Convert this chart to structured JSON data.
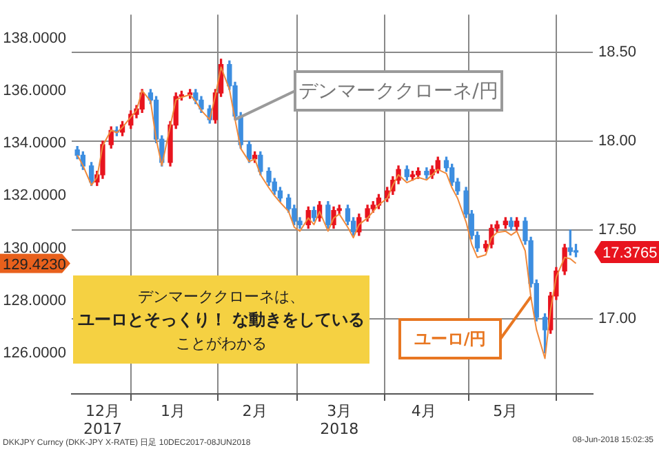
{
  "chart_data": {
    "type": "candlestick",
    "x": [
      "2017-12-13",
      "2017-12-15",
      "2017-12-18",
      "2017-12-20",
      "2017-12-22",
      "2017-12-25",
      "2017-12-27",
      "2017-12-29",
      "2018-01-01",
      "2018-01-03",
      "2018-01-05",
      "2018-01-08",
      "2018-01-10",
      "2018-01-12",
      "2018-01-15",
      "2018-01-17",
      "2018-01-19",
      "2018-01-22",
      "2018-01-24",
      "2018-01-26",
      "2018-01-29",
      "2018-01-31",
      "2018-02-02",
      "2018-02-05",
      "2018-02-07",
      "2018-02-09",
      "2018-02-12",
      "2018-02-14",
      "2018-02-16",
      "2018-02-19",
      "2018-02-21",
      "2018-02-23",
      "2018-02-26",
      "2018-02-28",
      "2018-03-02",
      "2018-03-05",
      "2018-03-07",
      "2018-03-09",
      "2018-03-12",
      "2018-03-14",
      "2018-03-16",
      "2018-03-19",
      "2018-03-21",
      "2018-03-23",
      "2018-03-26",
      "2018-03-28",
      "2018-03-30",
      "2018-04-02",
      "2018-04-04",
      "2018-04-06",
      "2018-04-09",
      "2018-04-11",
      "2018-04-13",
      "2018-04-16",
      "2018-04-18",
      "2018-04-20",
      "2018-04-23",
      "2018-04-25",
      "2018-04-27",
      "2018-04-30",
      "2018-05-02",
      "2018-05-04",
      "2018-05-07",
      "2018-05-09",
      "2018-05-11",
      "2018-05-14",
      "2018-05-16",
      "2018-05-18",
      "2018-05-21",
      "2018-05-23",
      "2018-05-25",
      "2018-05-28",
      "2018-05-30",
      "2018-06-01",
      "2018-06-04",
      "2018-06-06",
      "2018-06-08"
    ],
    "series": [
      {
        "type": "line",
        "axis": "y",
        "color": "#f08a3c",
        "values": [
          133.55,
          133.15,
          132.4,
          132.7,
          133.9,
          134.5,
          134.4,
          134.6,
          135.0,
          135.25,
          136.0,
          135.6,
          134.15,
          133.15,
          134.65,
          135.65,
          135.75,
          135.85,
          135.6,
          135.25,
          134.9,
          135.8,
          136.9,
          136.05,
          134.9,
          133.8,
          133.3,
          133.4,
          132.8,
          132.3,
          132.0,
          131.75,
          131.4,
          130.8,
          130.65,
          131.15,
          130.9,
          131.4,
          130.65,
          131.15,
          131.3,
          130.8,
          130.4,
          130.9,
          131.15,
          131.4,
          131.65,
          131.9,
          132.4,
          132.8,
          132.5,
          132.6,
          132.7,
          132.6,
          132.8,
          133.0,
          132.85,
          132.3,
          131.9,
          131.0,
          130.15,
          129.65,
          129.75,
          130.4,
          130.6,
          130.65,
          130.5,
          130.65,
          129.9,
          128.15,
          126.9,
          125.8,
          127.65,
          128.9,
          129.65,
          129.6,
          129.423
        ]
      },
      {
        "type": "candlestick",
        "axis": "y2",
        "ohlc": [
          [
            17.95,
            17.97,
            17.9,
            17.92
          ],
          [
            17.92,
            17.94,
            17.84,
            17.86
          ],
          [
            17.86,
            17.88,
            17.75,
            17.77
          ],
          [
            17.77,
            17.83,
            17.75,
            17.81
          ],
          [
            17.81,
            18.0,
            17.79,
            17.98
          ],
          [
            17.98,
            18.08,
            17.96,
            18.06
          ],
          [
            18.06,
            18.08,
            18.03,
            18.05
          ],
          [
            18.05,
            18.11,
            18.03,
            18.09
          ],
          [
            18.09,
            18.17,
            18.07,
            18.15
          ],
          [
            18.15,
            18.2,
            18.13,
            18.18
          ],
          [
            18.18,
            18.29,
            18.16,
            18.27
          ],
          [
            18.27,
            18.29,
            18.21,
            18.23
          ],
          [
            18.23,
            18.25,
            17.99,
            18.01
          ],
          [
            18.01,
            18.03,
            17.86,
            17.88
          ],
          [
            17.88,
            18.11,
            17.86,
            18.09
          ],
          [
            18.09,
            18.27,
            18.07,
            18.25
          ],
          [
            18.25,
            18.28,
            18.23,
            18.26
          ],
          [
            18.26,
            18.29,
            18.24,
            18.27
          ],
          [
            18.27,
            18.29,
            18.21,
            18.23
          ],
          [
            18.23,
            18.25,
            18.16,
            18.18
          ],
          [
            18.18,
            18.2,
            18.1,
            18.12
          ],
          [
            18.12,
            18.29,
            18.1,
            18.27
          ],
          [
            18.27,
            18.46,
            18.25,
            18.43
          ],
          [
            18.43,
            18.45,
            18.29,
            18.31
          ],
          [
            18.31,
            18.33,
            18.12,
            18.14
          ],
          [
            18.14,
            18.16,
            17.96,
            17.98
          ],
          [
            17.98,
            18.0,
            17.88,
            17.9
          ],
          [
            17.9,
            17.94,
            17.88,
            17.92
          ],
          [
            17.92,
            17.94,
            17.81,
            17.83
          ],
          [
            17.83,
            17.85,
            17.75,
            17.77
          ],
          [
            17.77,
            17.79,
            17.7,
            17.72
          ],
          [
            17.72,
            17.74,
            17.66,
            17.68
          ],
          [
            17.68,
            17.7,
            17.6,
            17.62
          ],
          [
            17.62,
            17.64,
            17.53,
            17.55
          ],
          [
            17.55,
            17.57,
            17.51,
            17.53
          ],
          [
            17.53,
            17.63,
            17.51,
            17.61
          ],
          [
            17.61,
            17.63,
            17.55,
            17.57
          ],
          [
            17.57,
            17.66,
            17.55,
            17.64
          ],
          [
            17.64,
            17.66,
            17.51,
            17.53
          ],
          [
            17.53,
            17.63,
            17.51,
            17.61
          ],
          [
            17.61,
            17.64,
            17.59,
            17.62
          ],
          [
            17.62,
            17.64,
            17.53,
            17.55
          ],
          [
            17.55,
            17.57,
            17.47,
            17.49
          ],
          [
            17.49,
            17.59,
            17.47,
            17.57
          ],
          [
            17.57,
            17.64,
            17.55,
            17.62
          ],
          [
            17.62,
            17.66,
            17.6,
            17.64
          ],
          [
            17.64,
            17.7,
            17.62,
            17.68
          ],
          [
            17.68,
            17.74,
            17.66,
            17.72
          ],
          [
            17.72,
            17.8,
            17.7,
            17.78
          ],
          [
            17.78,
            17.86,
            17.76,
            17.84
          ],
          [
            17.84,
            17.86,
            17.78,
            17.8
          ],
          [
            17.8,
            17.83,
            17.78,
            17.81
          ],
          [
            17.81,
            17.85,
            17.79,
            17.83
          ],
          [
            17.83,
            17.85,
            17.79,
            17.81
          ],
          [
            17.81,
            17.86,
            17.79,
            17.84
          ],
          [
            17.84,
            17.91,
            17.82,
            17.89
          ],
          [
            17.89,
            17.91,
            17.83,
            17.85
          ],
          [
            17.85,
            17.87,
            17.75,
            17.77
          ],
          [
            17.77,
            17.79,
            17.7,
            17.72
          ],
          [
            17.72,
            17.74,
            17.57,
            17.59
          ],
          [
            17.59,
            17.61,
            17.45,
            17.47
          ],
          [
            17.47,
            17.49,
            17.38,
            17.4
          ],
          [
            17.4,
            17.44,
            17.38,
            17.42
          ],
          [
            17.42,
            17.53,
            17.4,
            17.51
          ],
          [
            17.51,
            17.55,
            17.49,
            17.53
          ],
          [
            17.53,
            17.57,
            17.51,
            17.55
          ],
          [
            17.55,
            17.57,
            17.5,
            17.52
          ],
          [
            17.52,
            17.57,
            17.5,
            17.55
          ],
          [
            17.55,
            17.57,
            17.42,
            17.44
          ],
          [
            17.44,
            17.46,
            17.18,
            17.2
          ],
          [
            17.2,
            17.22,
            16.99,
            17.01
          ],
          [
            17.01,
            17.03,
            16.81,
            16.94
          ],
          [
            16.94,
            17.15,
            16.92,
            17.13
          ],
          [
            17.13,
            17.29,
            17.11,
            17.27
          ],
          [
            17.27,
            17.42,
            17.25,
            17.4
          ],
          [
            17.4,
            17.5,
            17.36,
            17.38
          ],
          [
            17.38,
            17.42,
            17.35,
            17.3765
          ]
        ],
        "colors": [
          "#3d8ee0",
          "#3d8ee0",
          "#3d8ee0",
          "#e8141e",
          "#e8141e",
          "#e8141e",
          "#3d8ee0",
          "#e8141e",
          "#e8141e",
          "#e8141e",
          "#e8141e",
          "#3d8ee0",
          "#3d8ee0",
          "#3d8ee0",
          "#e8141e",
          "#e8141e",
          "#e8141e",
          "#e8141e",
          "#3d8ee0",
          "#3d8ee0",
          "#3d8ee0",
          "#e8141e",
          "#e8141e",
          "#3d8ee0",
          "#3d8ee0",
          "#3d8ee0",
          "#3d8ee0",
          "#e8141e",
          "#3d8ee0",
          "#3d8ee0",
          "#3d8ee0",
          "#3d8ee0",
          "#3d8ee0",
          "#3d8ee0",
          "#3d8ee0",
          "#e8141e",
          "#3d8ee0",
          "#e8141e",
          "#3d8ee0",
          "#e8141e",
          "#e8141e",
          "#3d8ee0",
          "#3d8ee0",
          "#e8141e",
          "#e8141e",
          "#e8141e",
          "#e8141e",
          "#e8141e",
          "#e8141e",
          "#e8141e",
          "#3d8ee0",
          "#e8141e",
          "#e8141e",
          "#3d8ee0",
          "#e8141e",
          "#e8141e",
          "#3d8ee0",
          "#3d8ee0",
          "#3d8ee0",
          "#3d8ee0",
          "#3d8ee0",
          "#3d8ee0",
          "#e8141e",
          "#e8141e",
          "#e8141e",
          "#e8141e",
          "#3d8ee0",
          "#e8141e",
          "#3d8ee0",
          "#3d8ee0",
          "#3d8ee0",
          "#3d8ee0",
          "#e8141e",
          "#e8141e",
          "#e8141e",
          "#3d8ee0",
          "#3d8ee0"
        ]
      }
    ],
    "xlim": [
      "2017-12-11",
      "2018-06-14"
    ],
    "xticks": [
      {
        "value": "2017-12-22",
        "label": "12月\n2017"
      },
      {
        "value": "2018-01-01",
        "label": null
      },
      {
        "value": "2018-01-16",
        "label": "1月"
      },
      {
        "value": "2018-02-01",
        "label": null
      },
      {
        "value": "2018-02-14",
        "label": "2月"
      },
      {
        "value": "2018-03-01",
        "label": null
      },
      {
        "value": "2018-03-16",
        "label": "3月\n2018"
      },
      {
        "value": "2018-04-01",
        "label": null
      },
      {
        "value": "2018-04-15",
        "label": "4月"
      },
      {
        "value": "2018-05-01",
        "label": null
      },
      {
        "value": "2018-05-14",
        "label": "5月"
      },
      {
        "value": "2018-06-01",
        "label": null
      }
    ],
    "ylim": [
      124.45,
      138.9
    ],
    "yticks": [
      {
        "value": 126,
        "label": "126.0000"
      },
      {
        "value": 128,
        "label": "128.0000"
      },
      {
        "value": 130,
        "label": "130.0000"
      },
      {
        "value": 132,
        "label": "132.0000"
      },
      {
        "value": 134,
        "label": "134.0000"
      },
      {
        "value": 136,
        "label": "136.0000"
      },
      {
        "value": 138,
        "label": "138.0000"
      }
    ],
    "y2lim": [
      16.58,
      18.71
    ],
    "y2ticks": [
      {
        "value": 17,
        "label": "17.00"
      },
      {
        "value": 17.5,
        "label": "17.50"
      },
      {
        "value": 18,
        "label": "18.00"
      },
      {
        "value": 18.5,
        "label": "18.50"
      }
    ],
    "grid": true,
    "annotations": [
      {
        "text": "デンマーククローネ/円",
        "x": "2018-02-07",
        "y": 134.9
      },
      {
        "text": "ユーロ/円",
        "x": "2018-05-23",
        "y": 128.15
      },
      "129.4230",
      "17.3765",
      "デンマーククローネは、",
      "ユーロとそっくり！ な動きをしている",
      "ことがわかる",
      "DKKJPY Curncy (DKK-JPY X-RATE)  日足 10DEC2017-08JUN2018",
      "08-Jun-2018 15:02:35"
    ]
  }
}
